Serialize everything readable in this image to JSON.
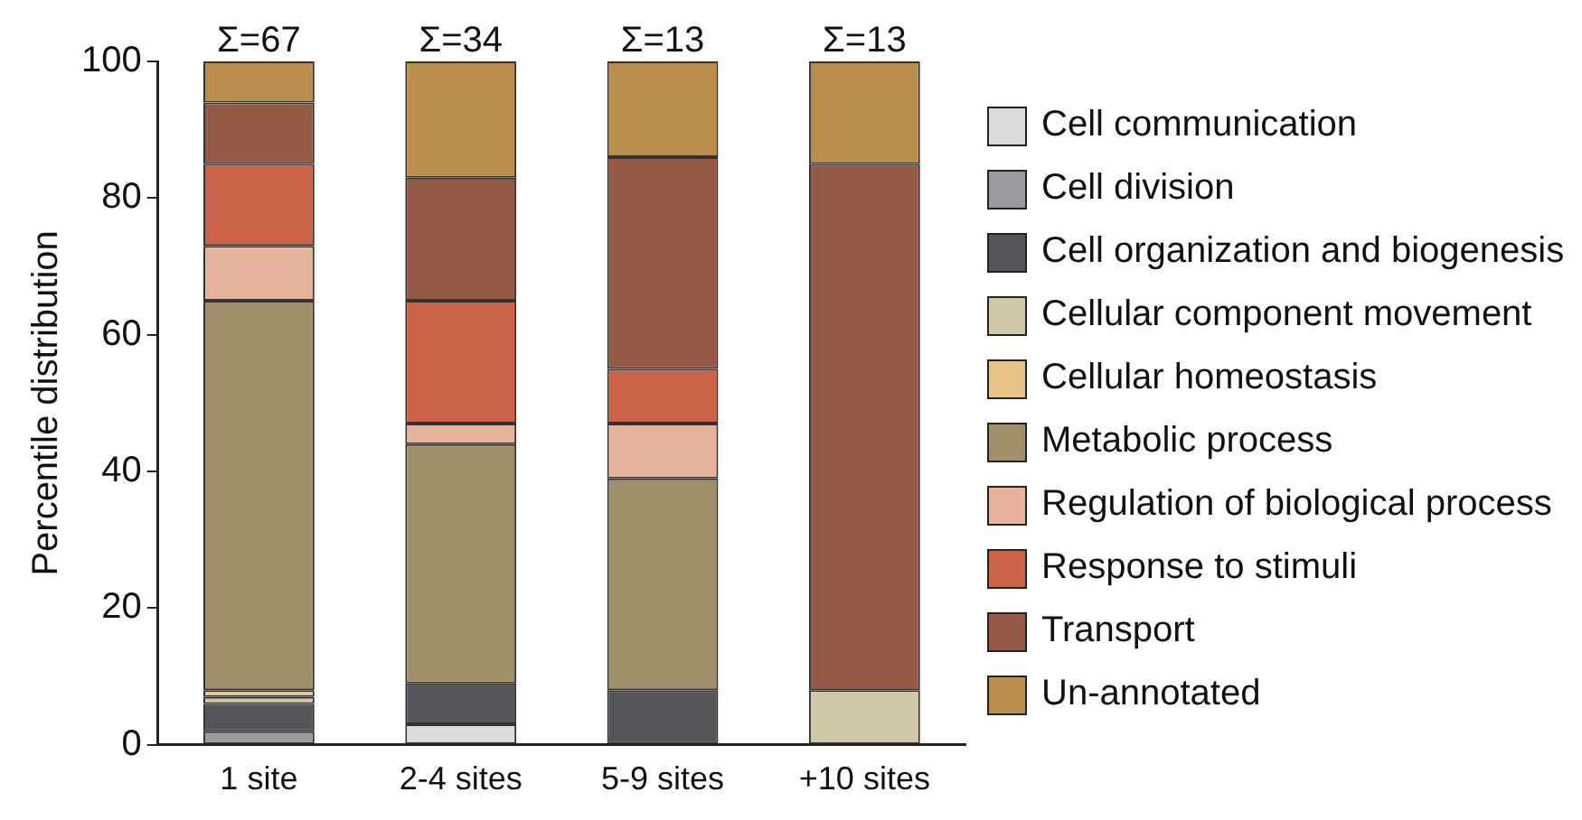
{
  "chart_data": {
    "type": "bar",
    "stacked": true,
    "ylabel": "Percentile distribution",
    "categories": [
      "1 site",
      "2-4 sites",
      "5-9 sites",
      "+10 sites"
    ],
    "ylim": [
      0,
      100
    ],
    "yticks": [
      0,
      20,
      40,
      60,
      80,
      100
    ],
    "grid": false,
    "legend": "right",
    "annotations": [
      {
        "text": "Σ=67",
        "x": "1 site",
        "y": 100
      },
      {
        "text": "Σ=34",
        "x": "2-4 sites",
        "y": 100
      },
      {
        "text": "Σ=13",
        "x": "5-9 sites",
        "y": 100
      },
      {
        "text": "Σ=13",
        "x": "+10 sites",
        "y": 100
      }
    ],
    "series": [
      {
        "name": "Cell communication",
        "color": "#dcdcdc",
        "values": [
          null,
          3,
          null,
          null
        ]
      },
      {
        "name": "Cell division",
        "color": "#9b9a9f",
        "values": [
          2,
          null,
          null,
          null
        ]
      },
      {
        "name": "Cell organization and biogenesis",
        "color": "#555458",
        "values": [
          4,
          6,
          8,
          null
        ]
      },
      {
        "name": "Cellular component movement",
        "color": "#d0c8a8",
        "values": [
          1,
          null,
          null,
          8
        ]
      },
      {
        "name": "Cellular homeostasis",
        "color": "#e8c48a",
        "values": [
          1,
          null,
          null,
          null
        ]
      },
      {
        "name": "Metabolic process",
        "color": "#a0906a",
        "values": [
          57,
          35,
          31,
          null
        ]
      },
      {
        "name": "Regulation of biological process",
        "color": "#e6b49c",
        "values": [
          8,
          3,
          8,
          null
        ]
      },
      {
        "name": "Response to stimuli",
        "color": "#cc6248",
        "values": [
          12,
          18,
          8,
          null
        ]
      },
      {
        "name": "Transport",
        "color": "#955a45",
        "values": [
          9,
          18,
          31,
          77
        ]
      },
      {
        "name": "Un-annotated",
        "color": "#b88e4a",
        "values": [
          6,
          17,
          14,
          15
        ]
      }
    ]
  }
}
